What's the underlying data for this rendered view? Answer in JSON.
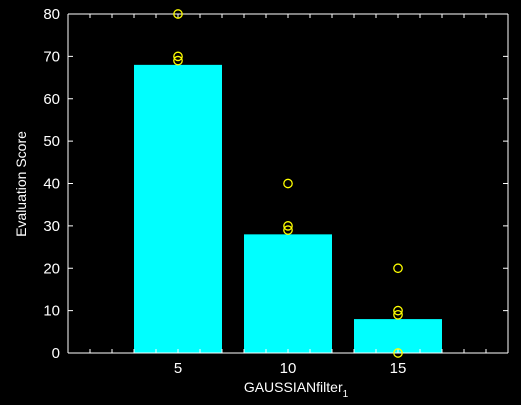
{
  "chart_data": {
    "type": "bar",
    "xlabel": "GAUSSIANfilter",
    "xlabel_subscript": "1",
    "ylabel": "Evaluation Score",
    "categories": [
      "5",
      "10",
      "15"
    ],
    "x": [
      5,
      10,
      15
    ],
    "values": [
      68,
      28,
      8
    ],
    "xlim": [
      0,
      20
    ],
    "ylim": [
      0,
      80
    ],
    "yticks": [
      0,
      10,
      20,
      30,
      40,
      50,
      60,
      70,
      80
    ],
    "xticks": [
      5,
      10,
      15
    ],
    "grid": false,
    "legend": "none",
    "points": [
      {
        "x": 5,
        "y": 80
      },
      {
        "x": 5,
        "y": 70
      },
      {
        "x": 5,
        "y": 69
      },
      {
        "x": 10,
        "y": 40
      },
      {
        "x": 10,
        "y": 30
      },
      {
        "x": 10,
        "y": 29
      },
      {
        "x": 15,
        "y": 20
      },
      {
        "x": 15,
        "y": 10
      },
      {
        "x": 15,
        "y": 9
      },
      {
        "x": 15,
        "y": 0
      }
    ],
    "colors": {
      "background": "#000000",
      "bar": "#00ffff",
      "marker": "#ffff00",
      "axis": "#ffffff",
      "text": "#ffffff"
    }
  }
}
